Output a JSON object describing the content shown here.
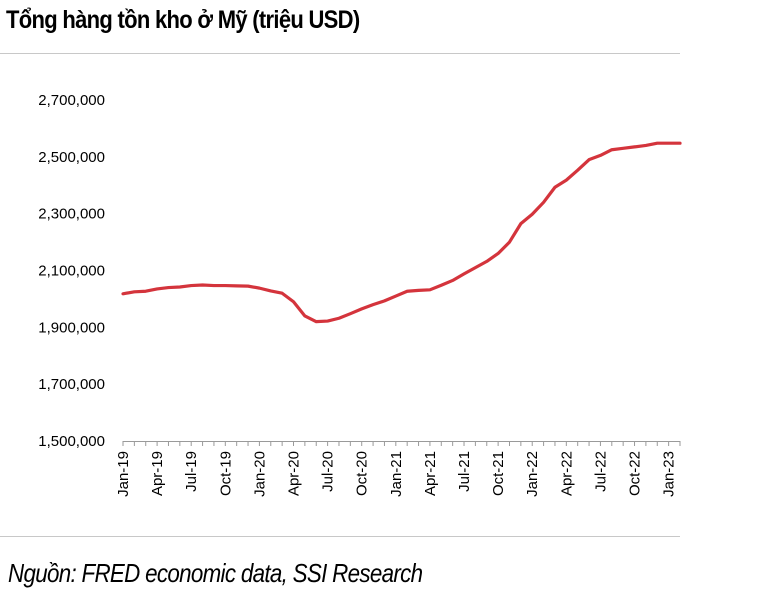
{
  "title": "Tổng hàng tồn kho ở Mỹ (triệu USD)",
  "source": "Nguồn: FRED economic data, SSI Research",
  "chart_data": {
    "type": "line",
    "title": "Tổng hàng tồn kho ở Mỹ (triệu USD)",
    "xlabel": "",
    "ylabel": "",
    "ylim": [
      1500000,
      2700000
    ],
    "yticks": [
      1500000,
      1700000,
      1900000,
      2100000,
      2300000,
      2500000,
      2700000
    ],
    "ytick_labels": [
      "1,500,000",
      "1,700,000",
      "1,900,000",
      "2,100,000",
      "2,300,000",
      "2,500,000",
      "2,700,000"
    ],
    "xtick_labels": [
      "Jan-19",
      "Apr-19",
      "Jul-19",
      "Oct-19",
      "Jan-20",
      "Apr-20",
      "Jul-20",
      "Oct-20",
      "Jan-21",
      "Apr-21",
      "Jul-21",
      "Oct-21",
      "Jan-22",
      "Apr-22",
      "Jul-22",
      "Oct-22",
      "Jan-23"
    ],
    "grid": false,
    "legend": "none",
    "line_color": "#d4343c",
    "series": [
      {
        "x": [
          "Jan-19",
          "Feb-19",
          "Mar-19",
          "Apr-19",
          "May-19",
          "Jun-19",
          "Jul-19",
          "Aug-19",
          "Sep-19",
          "Oct-19",
          "Nov-19",
          "Dec-19",
          "Jan-20",
          "Feb-20",
          "Mar-20",
          "Apr-20",
          "May-20",
          "Jun-20",
          "Jul-20",
          "Aug-20",
          "Sep-20",
          "Oct-20",
          "Nov-20",
          "Dec-20",
          "Jan-21",
          "Feb-21",
          "Mar-21",
          "Apr-21",
          "May-21",
          "Jun-21",
          "Jul-21",
          "Aug-21",
          "Sep-21",
          "Oct-21",
          "Nov-21",
          "Dec-21",
          "Jan-22",
          "Feb-22",
          "Mar-22",
          "Apr-22",
          "May-22",
          "Jun-22",
          "Jul-22",
          "Aug-22",
          "Sep-22",
          "Oct-22",
          "Nov-22",
          "Dec-22",
          "Jan-23",
          "Feb-23"
        ],
        "values": [
          2018000,
          2025000,
          2027000,
          2035000,
          2040000,
          2042000,
          2047000,
          2049000,
          2047000,
          2047000,
          2046000,
          2045000,
          2038000,
          2028000,
          2020000,
          1990000,
          1940000,
          1920000,
          1922000,
          1932000,
          1948000,
          1965000,
          1980000,
          1993000,
          2010000,
          2027000,
          2030000,
          2032000,
          2048000,
          2065000,
          2088000,
          2110000,
          2132000,
          2160000,
          2200000,
          2265000,
          2298000,
          2340000,
          2393000,
          2418000,
          2453000,
          2490000,
          2505000,
          2525000,
          2530000,
          2535000,
          2540000,
          2548000,
          2548000,
          2548000
        ]
      }
    ]
  }
}
